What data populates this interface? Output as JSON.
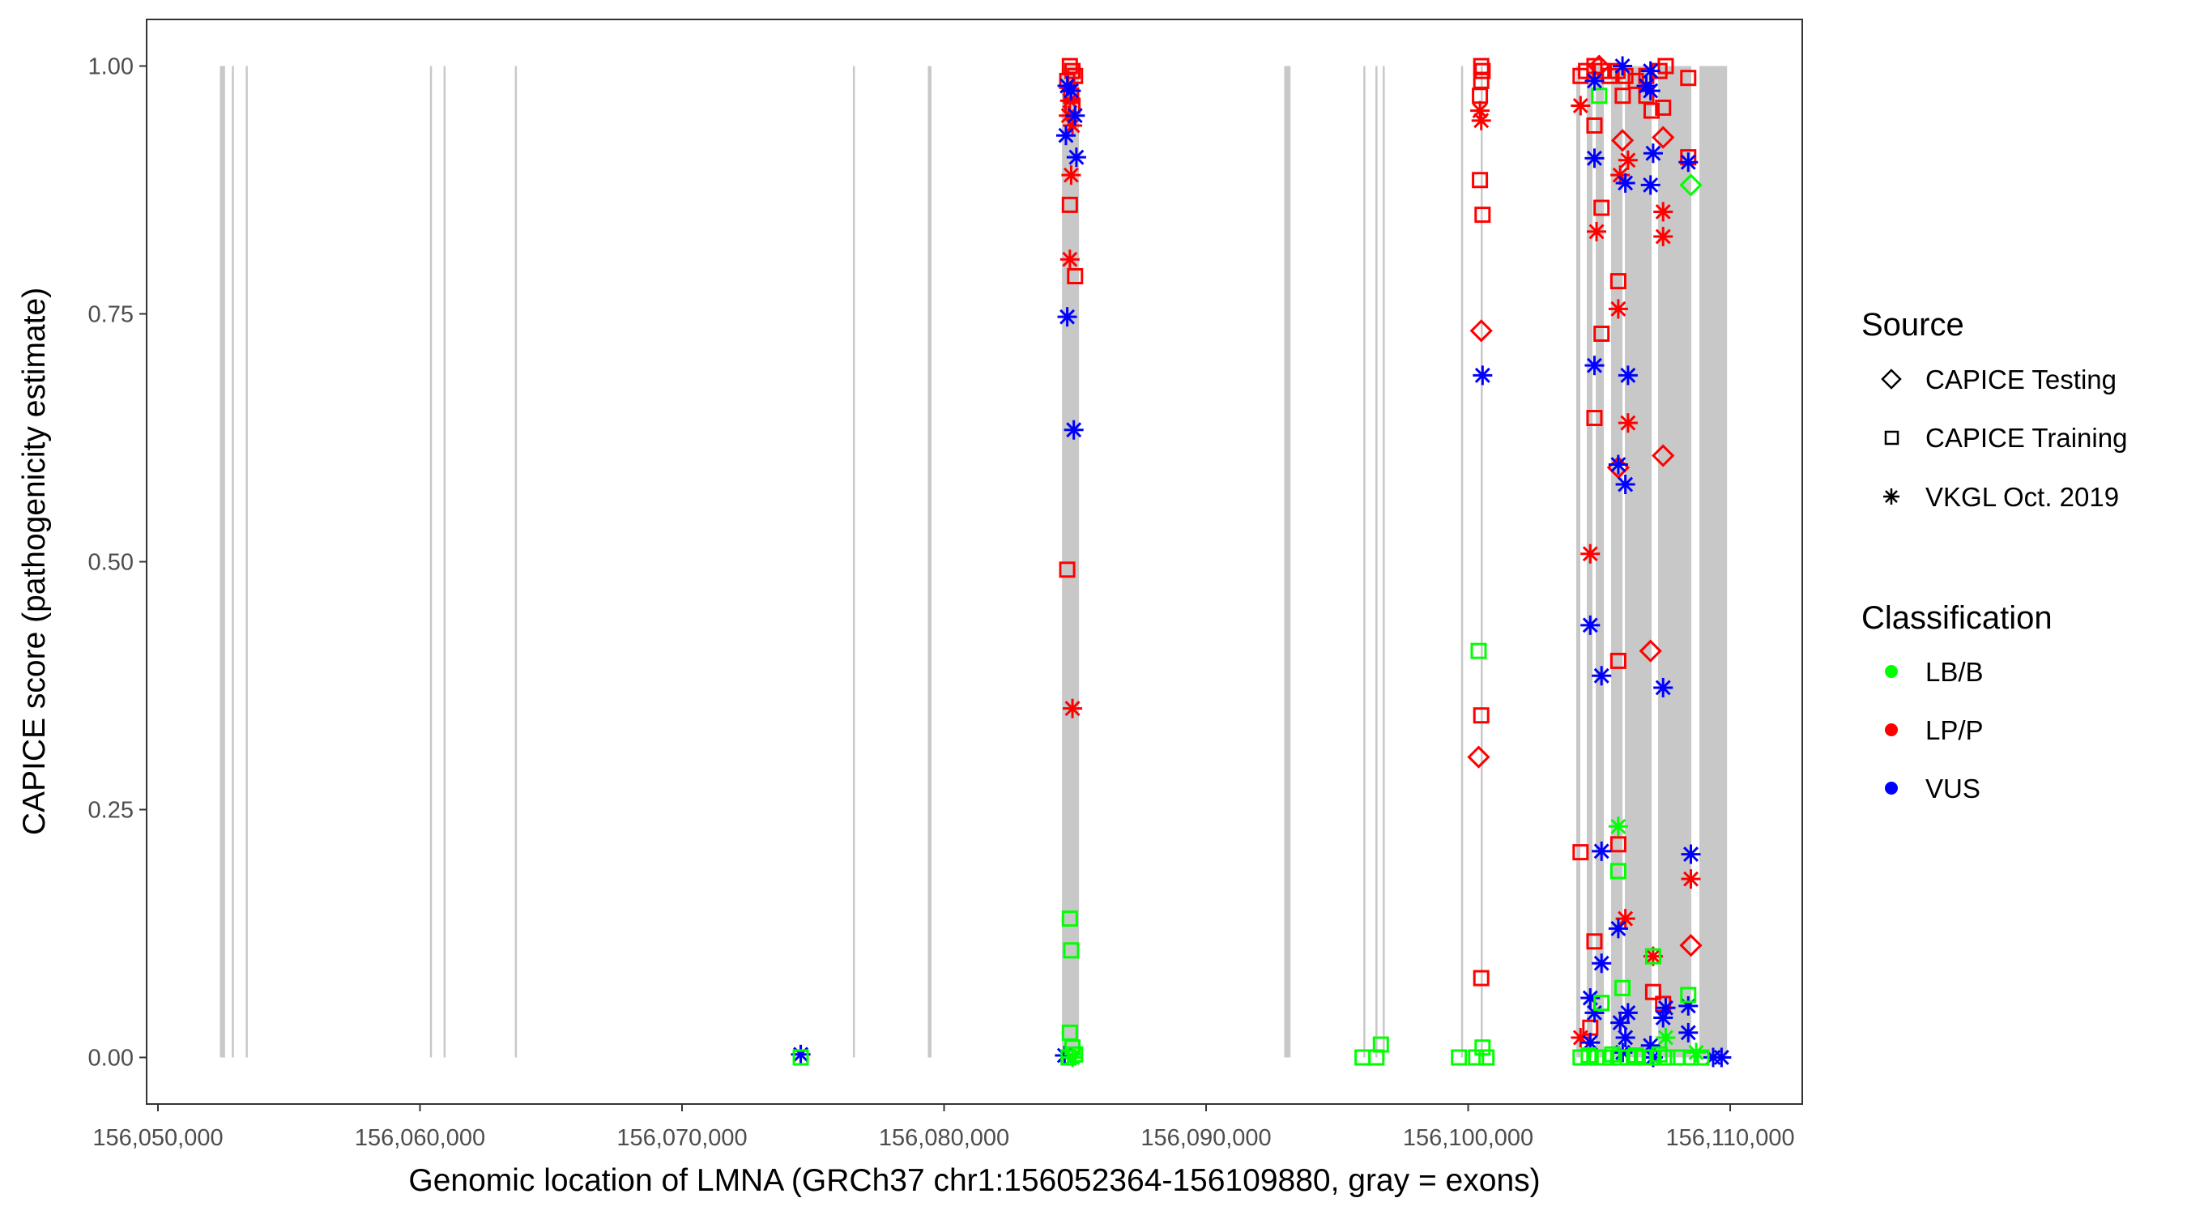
{
  "chart_data": {
    "type": "scatter",
    "title": "",
    "xlabel": "Genomic location of LMNA (GRCh37 chr1:156052364-156109880, gray = exons)",
    "ylabel": "CAPICE score (pathogenicity estimate)",
    "xlim": [
      156049567,
      156112750
    ],
    "ylim": [
      -0.047,
      1.047
    ],
    "x_ticks": [
      156050000,
      156060000,
      156070000,
      156080000,
      156090000,
      156100000,
      156110000
    ],
    "x_tick_labels": [
      "156,050,000",
      "156,060,000",
      "156,070,000",
      "156,080,000",
      "156,090,000",
      "156,100,000",
      "156,110,000"
    ],
    "y_ticks": [
      0,
      0.25,
      0.5,
      0.75,
      1.0
    ],
    "y_tick_labels": [
      "0.00",
      "0.25",
      "0.50",
      "0.75",
      "1.00"
    ],
    "grid": false,
    "legend_position": "right",
    "legend": {
      "source_title": "Source",
      "source_entries": [
        {
          "key": "T",
          "label": "CAPICE Testing",
          "shape": "diamond"
        },
        {
          "key": "R",
          "label": "CAPICE Training",
          "shape": "square"
        },
        {
          "key": "V",
          "label": "VKGL Oct. 2019",
          "shape": "asterisk"
        }
      ],
      "class_title": "Classification",
      "class_entries": [
        {
          "key": "G",
          "label": "LB/B",
          "color": "#00ff00"
        },
        {
          "key": "R",
          "label": "LP/P",
          "color": "#ff0000"
        },
        {
          "key": "B",
          "label": "VUS",
          "color": "#0000ff"
        }
      ]
    },
    "exons": [
      [
        156052364,
        156052560
      ],
      [
        156052820,
        156052900
      ],
      [
        156053350,
        156053420
      ],
      [
        156060380,
        156060430
      ],
      [
        156060900,
        156060950
      ],
      [
        156063620,
        156063680
      ],
      [
        156076520,
        156076590
      ],
      [
        156079380,
        156079520
      ],
      [
        156092980,
        156093220
      ],
      [
        156096000,
        156096060
      ],
      [
        156096460,
        156096540
      ],
      [
        156096740,
        156096800
      ],
      [
        156099730,
        156099790
      ],
      [
        156100480,
        156100540
      ],
      [
        156084500,
        156085150
      ],
      [
        156104127,
        156104281
      ],
      [
        156104529,
        156104745
      ],
      [
        156104869,
        156105178
      ],
      [
        156105456,
        156105889
      ],
      [
        156105982,
        156107002
      ],
      [
        156107249,
        156108517
      ],
      [
        156108826,
        156109880
      ]
    ],
    "points_columns": [
      "position",
      "score",
      "source",
      "classification"
    ],
    "points": [
      [
        156074530,
        0.003,
        "V",
        "B"
      ],
      [
        156074530,
        0.0,
        "R",
        "G"
      ],
      [
        156084800,
        1.0,
        "R",
        "R"
      ],
      [
        156084900,
        0.995,
        "R",
        "R"
      ],
      [
        156085000,
        0.99,
        "R",
        "R"
      ],
      [
        156084700,
        0.985,
        "R",
        "R"
      ],
      [
        156084850,
        0.97,
        "R",
        "R"
      ],
      [
        156084900,
        0.96,
        "R",
        "R"
      ],
      [
        156084750,
        0.95,
        "V",
        "R"
      ],
      [
        156084900,
        0.94,
        "V",
        "R"
      ],
      [
        156084800,
        0.965,
        "V",
        "R"
      ],
      [
        156084850,
        0.89,
        "V",
        "R"
      ],
      [
        156084800,
        0.805,
        "V",
        "R"
      ],
      [
        156084900,
        0.352,
        "V",
        "R"
      ],
      [
        156084700,
        0.98,
        "V",
        "B"
      ],
      [
        156084850,
        0.975,
        "V",
        "B"
      ],
      [
        156084650,
        0.93,
        "V",
        "B"
      ],
      [
        156085000,
        0.95,
        "V",
        "B"
      ],
      [
        156085050,
        0.908,
        "V",
        "B"
      ],
      [
        156084700,
        0.747,
        "V",
        "B"
      ],
      [
        156084950,
        0.633,
        "V",
        "B"
      ],
      [
        156084600,
        0.002,
        "V",
        "B"
      ],
      [
        156084800,
        0.86,
        "R",
        "R"
      ],
      [
        156085000,
        0.788,
        "R",
        "R"
      ],
      [
        156084700,
        0.492,
        "R",
        "R"
      ],
      [
        156084800,
        0.14,
        "R",
        "G"
      ],
      [
        156084850,
        0.108,
        "R",
        "G"
      ],
      [
        156084800,
        0.025,
        "R",
        "G"
      ],
      [
        156084900,
        0.01,
        "R",
        "G"
      ],
      [
        156085000,
        0.003,
        "R",
        "G"
      ],
      [
        156084750,
        0.0,
        "R",
        "G"
      ],
      [
        156084900,
        0.0,
        "V",
        "G"
      ],
      [
        156095970,
        0.0,
        "R",
        "G"
      ],
      [
        156096670,
        0.013,
        "R",
        "G"
      ],
      [
        156096500,
        0.0,
        "R",
        "G"
      ],
      [
        156099650,
        0.0,
        "R",
        "G"
      ],
      [
        156100500,
        1.0,
        "R",
        "R"
      ],
      [
        156100550,
        0.995,
        "R",
        "R"
      ],
      [
        156100500,
        0.985,
        "R",
        "R"
      ],
      [
        156100450,
        0.97,
        "R",
        "R"
      ],
      [
        156100450,
        0.885,
        "R",
        "R"
      ],
      [
        156100550,
        0.85,
        "R",
        "R"
      ],
      [
        156100450,
        0.955,
        "V",
        "R"
      ],
      [
        156100500,
        0.945,
        "V",
        "R"
      ],
      [
        156100500,
        0.733,
        "T",
        "R"
      ],
      [
        156100400,
        0.303,
        "T",
        "R"
      ],
      [
        156100550,
        0.688,
        "V",
        "B"
      ],
      [
        156100400,
        0.41,
        "R",
        "G"
      ],
      [
        156100500,
        0.345,
        "R",
        "R"
      ],
      [
        156100500,
        0.08,
        "R",
        "R"
      ],
      [
        156100550,
        0.01,
        "R",
        "G"
      ],
      [
        156100300,
        0.0,
        "R",
        "G"
      ],
      [
        156100700,
        0.0,
        "R",
        "G"
      ],
      [
        156104290,
        0.99,
        "R",
        "R"
      ],
      [
        156104500,
        0.995,
        "R",
        "R"
      ],
      [
        156104820,
        1.0,
        "R",
        "R"
      ],
      [
        156105090,
        0.995,
        "R",
        "R"
      ],
      [
        156105400,
        0.99,
        "R",
        "R"
      ],
      [
        156105700,
        0.995,
        "R",
        "R"
      ],
      [
        156106000,
        0.99,
        "R",
        "R"
      ],
      [
        156106400,
        0.985,
        "R",
        "R"
      ],
      [
        156106800,
        0.99,
        "R",
        "R"
      ],
      [
        156107300,
        0.995,
        "R",
        "R"
      ],
      [
        156107540,
        1.0,
        "R",
        "R"
      ],
      [
        156105900,
        0.97,
        "R",
        "R"
      ],
      [
        156106800,
        0.97,
        "R",
        "R"
      ],
      [
        156105000,
        1.0,
        "T",
        "R"
      ],
      [
        156104290,
        0.96,
        "V",
        "R"
      ],
      [
        156105000,
        0.97,
        "R",
        "G"
      ],
      [
        156104820,
        0.985,
        "V",
        "B"
      ],
      [
        156105890,
        1.0,
        "V",
        "B"
      ],
      [
        156106960,
        0.995,
        "V",
        "B"
      ],
      [
        156106960,
        0.975,
        "V",
        "B"
      ],
      [
        156106800,
        0.98,
        "V",
        "B"
      ],
      [
        156107440,
        0.958,
        "R",
        "R"
      ],
      [
        156107000,
        0.955,
        "R",
        "R"
      ],
      [
        156104820,
        0.94,
        "R",
        "R"
      ],
      [
        156105090,
        0.857,
        "R",
        "R"
      ],
      [
        156105730,
        0.783,
        "R",
        "R"
      ],
      [
        156105090,
        0.73,
        "R",
        "R"
      ],
      [
        156104820,
        0.645,
        "R",
        "R"
      ],
      [
        156108400,
        0.988,
        "R",
        "R"
      ],
      [
        156108400,
        0.908,
        "R",
        "R"
      ],
      [
        156105730,
        0.4,
        "R",
        "R"
      ],
      [
        156105730,
        0.215,
        "R",
        "R"
      ],
      [
        156104290,
        0.207,
        "R",
        "R"
      ],
      [
        156104820,
        0.117,
        "R",
        "R"
      ],
      [
        156107060,
        0.066,
        "R",
        "R"
      ],
      [
        156107440,
        0.054,
        "R",
        "R"
      ],
      [
        156104660,
        0.03,
        "R",
        "R"
      ],
      [
        156107440,
        0.928,
        "T",
        "R"
      ],
      [
        156105890,
        0.925,
        "T",
        "R"
      ],
      [
        156105730,
        0.595,
        "T",
        "R"
      ],
      [
        156107440,
        0.607,
        "T",
        "R"
      ],
      [
        156106960,
        0.41,
        "T",
        "R"
      ],
      [
        156108500,
        0.113,
        "T",
        "R"
      ],
      [
        156108500,
        0.88,
        "T",
        "G"
      ],
      [
        156106100,
        0.905,
        "V",
        "R"
      ],
      [
        156105800,
        0.89,
        "V",
        "R"
      ],
      [
        156104900,
        0.833,
        "V",
        "R"
      ],
      [
        156107440,
        0.853,
        "V",
        "R"
      ],
      [
        156107440,
        0.828,
        "V",
        "R"
      ],
      [
        156105730,
        0.755,
        "V",
        "R"
      ],
      [
        156106100,
        0.64,
        "V",
        "R"
      ],
      [
        156104660,
        0.508,
        "V",
        "R"
      ],
      [
        156108500,
        0.18,
        "V",
        "R"
      ],
      [
        156106000,
        0.14,
        "V",
        "R"
      ],
      [
        156107060,
        0.102,
        "V",
        "R"
      ],
      [
        156104290,
        0.02,
        "V",
        "R"
      ],
      [
        156104820,
        0.907,
        "V",
        "B"
      ],
      [
        156107060,
        0.912,
        "V",
        "B"
      ],
      [
        156108400,
        0.903,
        "V",
        "B"
      ],
      [
        156106000,
        0.882,
        "V",
        "B"
      ],
      [
        156106960,
        0.88,
        "V",
        "B"
      ],
      [
        156104820,
        0.698,
        "V",
        "B"
      ],
      [
        156106100,
        0.688,
        "V",
        "B"
      ],
      [
        156105730,
        0.598,
        "V",
        "B"
      ],
      [
        156106000,
        0.578,
        "V",
        "B"
      ],
      [
        156104660,
        0.436,
        "V",
        "B"
      ],
      [
        156105090,
        0.385,
        "V",
        "B"
      ],
      [
        156107440,
        0.373,
        "V",
        "B"
      ],
      [
        156105090,
        0.208,
        "V",
        "B"
      ],
      [
        156108500,
        0.205,
        "V",
        "B"
      ],
      [
        156105730,
        0.13,
        "V",
        "B"
      ],
      [
        156105090,
        0.095,
        "V",
        "B"
      ],
      [
        156104660,
        0.06,
        "V",
        "B"
      ],
      [
        156104820,
        0.045,
        "V",
        "B"
      ],
      [
        156107440,
        0.04,
        "V",
        "B"
      ],
      [
        156107540,
        0.05,
        "V",
        "B"
      ],
      [
        156108400,
        0.052,
        "V",
        "B"
      ],
      [
        156105800,
        0.035,
        "V",
        "B"
      ],
      [
        156106100,
        0.045,
        "V",
        "B"
      ],
      [
        156108400,
        0.025,
        "V",
        "B"
      ],
      [
        156104660,
        0.015,
        "V",
        "B"
      ],
      [
        156106960,
        0.012,
        "V",
        "B"
      ],
      [
        156105900,
        0.005,
        "V",
        "B"
      ],
      [
        156109350,
        0.0,
        "V",
        "B"
      ],
      [
        156109670,
        0.0,
        "V",
        "B"
      ],
      [
        156107060,
        0.0,
        "V",
        "B"
      ],
      [
        156106000,
        0.02,
        "V",
        "B"
      ],
      [
        156105730,
        0.233,
        "V",
        "G"
      ],
      [
        156105730,
        0.188,
        "R",
        "G"
      ],
      [
        156105890,
        0.07,
        "R",
        "G"
      ],
      [
        156105090,
        0.055,
        "R",
        "G"
      ],
      [
        156108400,
        0.063,
        "R",
        "G"
      ],
      [
        156107060,
        0.102,
        "R",
        "G"
      ],
      [
        156107540,
        0.02,
        "V",
        "G"
      ],
      [
        156104290,
        0.0,
        "R",
        "G"
      ],
      [
        156104600,
        0.002,
        "R",
        "G"
      ],
      [
        156104900,
        0.0,
        "R",
        "G"
      ],
      [
        156105200,
        0.0,
        "R",
        "G"
      ],
      [
        156105500,
        0.003,
        "R",
        "G"
      ],
      [
        156105800,
        0.0,
        "R",
        "G"
      ],
      [
        156106100,
        0.0,
        "R",
        "G"
      ],
      [
        156106400,
        0.002,
        "R",
        "G"
      ],
      [
        156106700,
        0.0,
        "R",
        "G"
      ],
      [
        156107000,
        0.0,
        "R",
        "G"
      ],
      [
        156107300,
        0.003,
        "R",
        "G"
      ],
      [
        156107600,
        0.0,
        "R",
        "G"
      ],
      [
        156108000,
        0.0,
        "R",
        "G"
      ],
      [
        156108500,
        0.0,
        "R",
        "G"
      ],
      [
        156108900,
        0.0,
        "R",
        "G"
      ],
      [
        156108700,
        0.005,
        "V",
        "G"
      ]
    ]
  }
}
